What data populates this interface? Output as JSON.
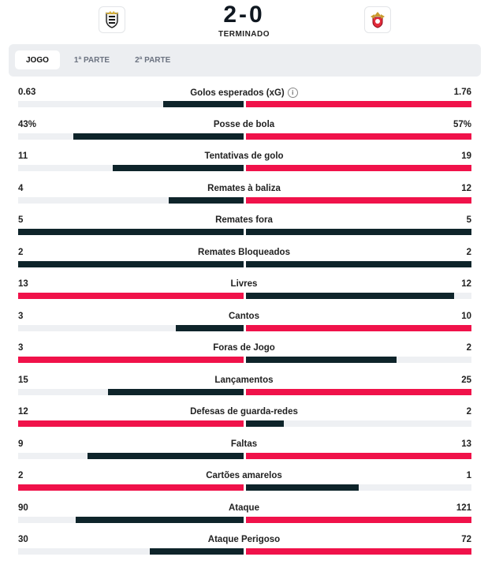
{
  "match": {
    "score": "2-0",
    "status": "TERMINADO",
    "home_crest": "famalicao-crest-icon",
    "away_crest": "benfica-crest-icon"
  },
  "tabs": [
    {
      "label": "JOGO",
      "active": true
    },
    {
      "label": "1ª PARTE",
      "active": false
    },
    {
      "label": "2ª PARTE",
      "active": false
    }
  ],
  "colors": {
    "winner": "#f0124a",
    "loser": "#0e242a",
    "track": "#eef0f3"
  },
  "stats": [
    {
      "label": "Golos esperados (xG)",
      "home": "0.63",
      "away": "1.76",
      "hv": 0.63,
      "av": 1.76,
      "info": true
    },
    {
      "label": "Posse de bola",
      "home": "43%",
      "away": "57%",
      "hv": 43,
      "av": 57
    },
    {
      "label": "Tentativas de golo",
      "home": "11",
      "away": "19",
      "hv": 11,
      "av": 19
    },
    {
      "label": "Remates à baliza",
      "home": "4",
      "away": "12",
      "hv": 4,
      "av": 12
    },
    {
      "label": "Remates fora",
      "home": "5",
      "away": "5",
      "hv": 5,
      "av": 5
    },
    {
      "label": "Remates Bloqueados",
      "home": "2",
      "away": "2",
      "hv": 2,
      "av": 2
    },
    {
      "label": "Livres",
      "home": "13",
      "away": "12",
      "hv": 13,
      "av": 12
    },
    {
      "label": "Cantos",
      "home": "3",
      "away": "10",
      "hv": 3,
      "av": 10
    },
    {
      "label": "Foras de Jogo",
      "home": "3",
      "away": "2",
      "hv": 3,
      "av": 2
    },
    {
      "label": "Lançamentos",
      "home": "15",
      "away": "25",
      "hv": 15,
      "av": 25
    },
    {
      "label": "Defesas de guarda-redes",
      "home": "12",
      "away": "2",
      "hv": 12,
      "av": 2
    },
    {
      "label": "Faltas",
      "home": "9",
      "away": "13",
      "hv": 9,
      "av": 13
    },
    {
      "label": "Cartões amarelos",
      "home": "2",
      "away": "1",
      "hv": 2,
      "av": 1
    },
    {
      "label": "Ataque",
      "home": "90",
      "away": "121",
      "hv": 90,
      "av": 121
    },
    {
      "label": "Ataque Perigoso",
      "home": "30",
      "away": "72",
      "hv": 30,
      "av": 72
    }
  ]
}
